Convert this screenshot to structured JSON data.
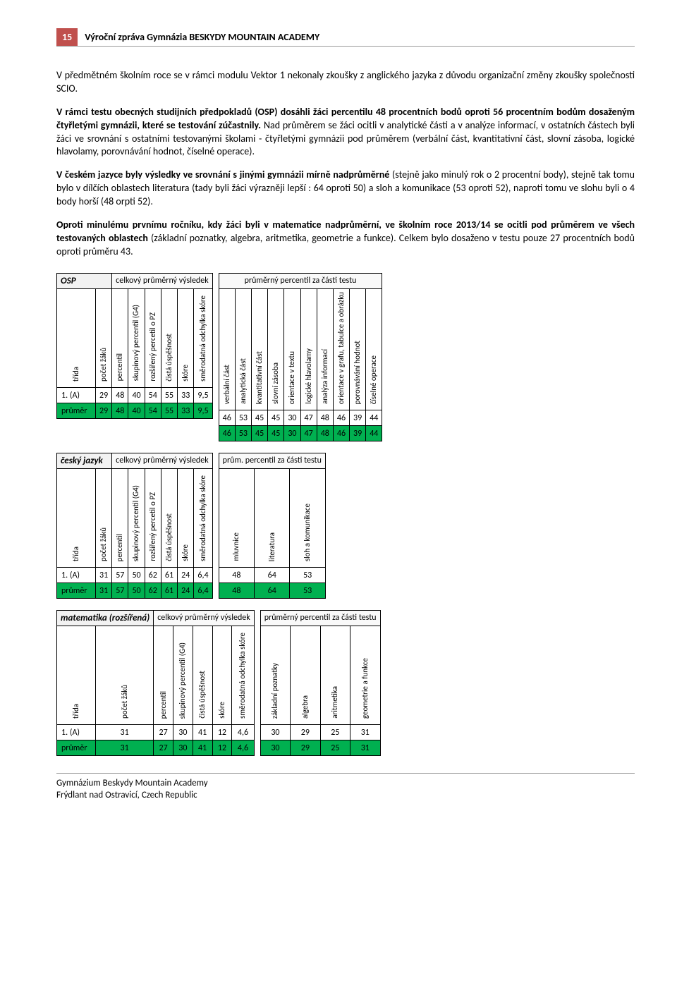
{
  "header": {
    "page_num": "15",
    "title": "Výroční zpráva Gymnázia BESKYDY MOUNTAIN ACADEMY"
  },
  "paragraphs": {
    "p1": "V předmětném školním roce se v rámci modulu Vektor 1 nekonaly zkoušky z anglického jazyka z důvodu organizační změny zkoušky společnosti SCIO.",
    "p2a": "V rámci testu obecných studijních předpokladů (OSP) dosáhli žáci percentilu 48 procentních bodů oproti 56 procentním bodům dosaženým čtyřletými gymnázii, které se testování zúčastnily.",
    "p2b": " Nad průměrem se žáci ocitli v analytické části a v analýze informací, v ostatních částech byli žáci ve srovnání s ostatními testovanými školami - čtyřletými gymnázii  pod průměrem (verbální část, kvantitativní část, slovní zásoba, logické hlavolamy, porovnávání hodnot, číselné operace).",
    "p3a": "V českém jazyce byly výsledky ve srovnání s jinými gymnázii mírně nadprůměrné",
    "p3b": " (stejně jako minulý rok o 2 procentní body), stejně tak tomu bylo v dílčích oblastech literatura (tady byli žáci výrazněji lepší : 64 oproti 50) a sloh a komunikace (53 oproti 52), naproti tomu ve slohu byli o 4 body horší (48 orpti 52).",
    "p4a": "Oproti minulému prvnímu ročníku, kdy žáci byli v matematice nadprůměrní, ve školním roce 2013/14 se ocitli pod průměrem ve všech testovaných oblastech",
    "p4b": " (základní poznatky, algebra, aritmetika, geometrie a funkce). Celkem bylo dosaženo v testu pouze 27 procentních bodů oproti průměru 43."
  },
  "tbl_osp": {
    "subject": "OSP",
    "left_section": "celkový průměrný výsledek",
    "right_section": "průměrný percentil za části testu",
    "left_cols": [
      "třída",
      "počet žáků",
      "percentil",
      "skupinový percentil (G4)",
      "rozšířený percetil o PZ",
      "čistá úspěšnost",
      "skóre",
      "směrodatná odchylka skóre"
    ],
    "right_cols": [
      "verbální část",
      "analytická část",
      "kvantitativní část",
      "slovní zásoba",
      "orientace v textu",
      "logické hlavolamy",
      "analýza informací",
      "orientace v grafu, tabulce a obrázku",
      "porovnávání hodnot",
      "číselné operace"
    ],
    "rows": [
      {
        "label": "1. (A)",
        "left": [
          "29",
          "48",
          "40",
          "54",
          "55",
          "33",
          "9,5"
        ],
        "right": [
          "46",
          "53",
          "45",
          "45",
          "30",
          "47",
          "48",
          "46",
          "39",
          "44"
        ]
      },
      {
        "label": "průměr",
        "left": [
          "29",
          "48",
          "40",
          "54",
          "55",
          "33",
          "9,5"
        ],
        "right": [
          "46",
          "53",
          "45",
          "45",
          "30",
          "47",
          "48",
          "46",
          "39",
          "44"
        ],
        "avg": true
      }
    ]
  },
  "tbl_cj": {
    "subject": "český jazyk",
    "left_section": "celkový průměrný výsledek",
    "right_section": "prům. percentil za části testu",
    "left_cols": [
      "třída",
      "počet žáků",
      "percentil",
      "skupinový percentil (G4)",
      "rozšířený percetil o PZ",
      "čistá úspěšnost",
      "skóre",
      "směrodatná odchylka skóre"
    ],
    "right_cols": [
      "mluvnice",
      "literatura",
      "sloh a komunikace"
    ],
    "rows": [
      {
        "label": "1. (A)",
        "left": [
          "31",
          "57",
          "50",
          "62",
          "61",
          "24",
          "6,4"
        ],
        "right": [
          "48",
          "64",
          "53"
        ]
      },
      {
        "label": "průměr",
        "left": [
          "31",
          "57",
          "50",
          "62",
          "61",
          "24",
          "6,4"
        ],
        "right": [
          "48",
          "64",
          "53"
        ],
        "avg": true
      }
    ]
  },
  "tbl_mat": {
    "subject": "matematika (rozšířená)",
    "left_section": "celkový průměrný výsledek",
    "right_section": "průměrný percentil za části testu",
    "left_cols": [
      "třída",
      "počet žáků",
      "percentil",
      "skupinový percentil (G4)",
      "čistá úspěšnost",
      "skóre",
      "směrodatná odchylka skóre"
    ],
    "right_cols": [
      "základní poznatky",
      "algebra",
      "aritmetika",
      "geometrie a funkce"
    ],
    "rows": [
      {
        "label": "1. (A)",
        "left": [
          "31",
          "27",
          "30",
          "41",
          "12",
          "4,6"
        ],
        "right": [
          "30",
          "29",
          "25",
          "31"
        ]
      },
      {
        "label": "průměr",
        "left": [
          "31",
          "27",
          "30",
          "41",
          "12",
          "4,6"
        ],
        "right": [
          "30",
          "29",
          "25",
          "31"
        ],
        "avg": true
      }
    ]
  },
  "footer": {
    "l1": "Gymnázium Beskydy Mountain Academy",
    "l2": "Frýdlant nad Ostravicí, Czech Republic"
  },
  "style": {
    "avg_row_color": "#00b050",
    "header_badge_color": "#c0504d"
  }
}
